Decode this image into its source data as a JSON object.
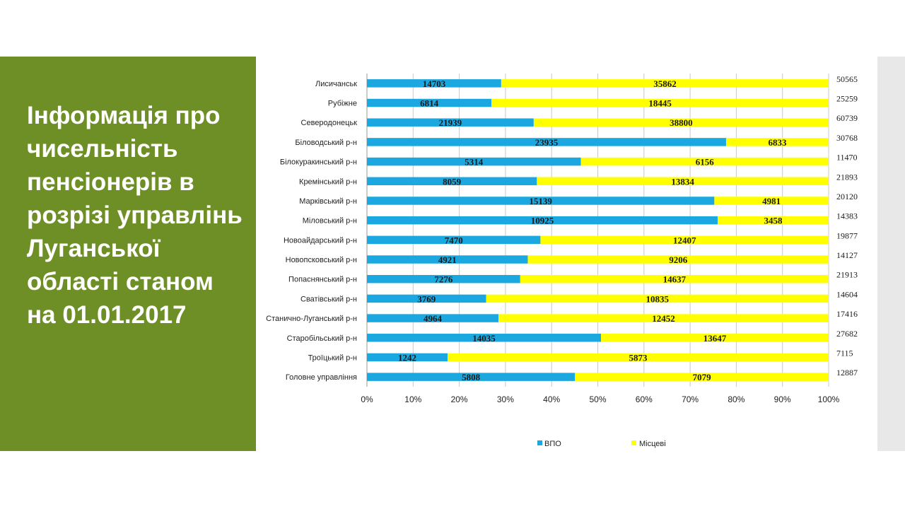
{
  "slide": {
    "title": "Інформація про чисельність пенсіонерів в розрізі управлінь Луганської області станом на 01.01.2017"
  },
  "colors": {
    "panel": "#6e8f26",
    "series_vpo": "#1ba8e0",
    "series_local": "#ffff00"
  },
  "chart_data": {
    "type": "bar",
    "orientation": "horizontal",
    "stacked": "percent",
    "categories": [
      "Лисичанськ",
      "Рубіжне",
      "Северодонецьк",
      "Біловодський р-н",
      "Білокуракинський р-н",
      "Кремінський р-н",
      "Марківський р-н",
      "Міловський р-н",
      "Новоайдарський р-н",
      "Новопсковський р-н",
      "Попаснянський р-н",
      "Сватівський р-н",
      "Станично-Луганський р-н",
      "Старобільський р-н",
      "Троїцький р-н",
      "Головне управління"
    ],
    "series": [
      {
        "name": "ВПО",
        "color": "#1ba8e0",
        "values": [
          14703,
          6814,
          21939,
          23935,
          5314,
          8059,
          15139,
          10925,
          7470,
          4921,
          7276,
          3769,
          4964,
          14035,
          1242,
          5808
        ]
      },
      {
        "name": "Місцеві",
        "color": "#ffff00",
        "values": [
          35862,
          18445,
          38800,
          6833,
          6156,
          13834,
          4981,
          3458,
          12407,
          9206,
          14637,
          10835,
          12452,
          13647,
          5873,
          7079
        ]
      }
    ],
    "totals": [
      50565,
      25259,
      60739,
      30768,
      11470,
      21893,
      20120,
      14383,
      19877,
      14127,
      21913,
      14604,
      17416,
      27682,
      7115,
      12887
    ],
    "x_ticks": [
      "0%",
      "10%",
      "20%",
      "30%",
      "40%",
      "50%",
      "60%",
      "70%",
      "80%",
      "90%",
      "100%"
    ],
    "xlim": [
      0,
      100
    ],
    "grid": true,
    "legend": "bottom"
  }
}
